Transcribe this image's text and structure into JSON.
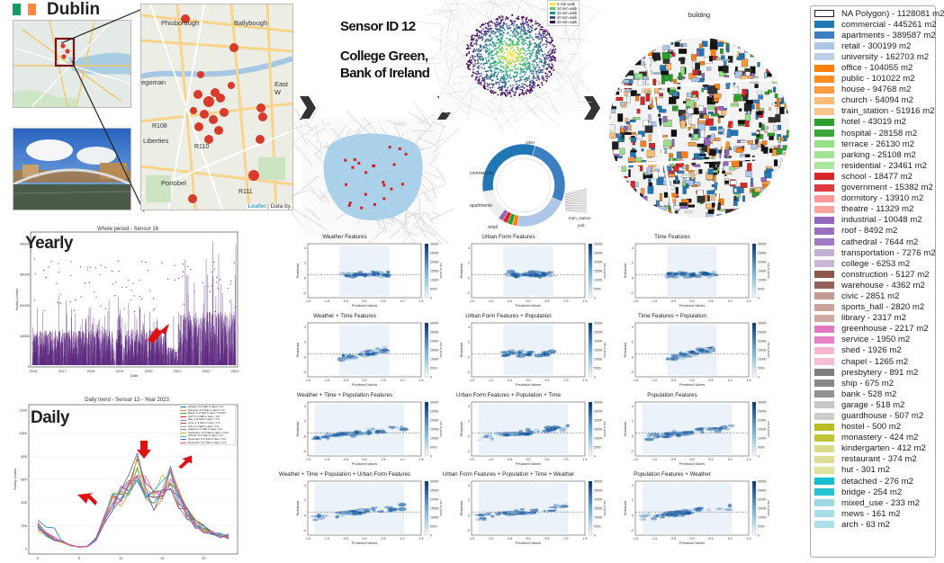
{
  "header": {
    "city": "Dublin"
  },
  "colors": {
    "ireland_green": "#169b62",
    "ireland_white": "#ffffff",
    "ireland_orange": "#ff883e",
    "marker": "#d93a2b",
    "purple": "#5e2a80"
  },
  "map": {
    "attribution_leaflet": "Leaflet",
    "attribution_suffix": "| Data by",
    "places": [
      "Phisborough",
      "Ballybough",
      "East W",
      "R108",
      "Liberties",
      "R110",
      "R111",
      "Portobel",
      "egoman"
    ]
  },
  "sensor": {
    "id_line": "Sensor ID 12",
    "location_line1": "College Green,",
    "location_line2": "Bank of Ireland"
  },
  "walk_legend": [
    "5 min walk",
    "10 min walk",
    "15 min walk",
    "20 min walk",
    "25 min walk"
  ],
  "building_title": "building",
  "pie_labels": [
    "commercial",
    "apartments",
    "retail",
    "train_station",
    "pub",
    "other"
  ],
  "yearly": {
    "label": "Yearly",
    "title": "Whole period - Sensor 16",
    "xlabel": "Date",
    "ylabel": "Hourly counts",
    "x_ticks": [
      "2016",
      "2017",
      "2018",
      "2019",
      "2020",
      "2021",
      "2022",
      "2023"
    ],
    "y_ticks": [
      "0",
      "10000",
      "20000",
      "30000",
      "40000"
    ]
  },
  "daily": {
    "label": "Daily",
    "title": "Daily trend - Sensor 12 - Year 2023",
    "ylabel": "Hourly counts",
    "x_ticks": [
      "0",
      "5",
      "10",
      "15",
      "20"
    ],
    "y_ticks": [
      "0",
      "200",
      "400",
      "600",
      "800",
      "1000",
      "1200"
    ],
    "legend": [
      "January, # of NaN in days = 0.0",
      "February, # of NaN in days = 0.0",
      "March, # of NaN in days = 0.5417",
      "April, # of NaN in days = 0.0",
      "May, # of NaN in days = 0.0",
      "June, # of NaN in days = 0.0",
      "July, # of NaN in days = 0.0",
      "August, # of NaN in days = 0.0",
      "September, # of NaN in days = 0.25",
      "October, # of NaN in days = 0.0",
      "November, # of NaN in days = 0.0",
      "December, # of NaN in days = 0.0"
    ]
  },
  "residual_plots": {
    "xlabel": "Predicted Values",
    "ylabel": "Residuals",
    "cbar_label": "count in bin",
    "x_ticks": [
      "-1.5",
      "-1.0",
      "-0.5",
      "0.0",
      "0.5",
      "1.0",
      "1.5"
    ],
    "y_ticks": [
      "4",
      "2",
      "0",
      "-2"
    ],
    "cbar_ticks": [
      "30000",
      "25000",
      "20000",
      "15000",
      "10000",
      "5000",
      "0"
    ],
    "titles": [
      "Weather Features",
      "Urban Form Features",
      "Time Features",
      "Weather + Time Features",
      "Urban Form Features + Population",
      "Time Features + Population",
      "Weather + Time + Population Features",
      "Urban Form Features + Population + Time",
      "Population Features",
      "Weather + Time + Population + Urban Form Features",
      "Urban Form Features + Population + Time + Weather",
      "Population Features + Weather"
    ]
  },
  "legend": {
    "items": [
      {
        "label": "NA Polygon) - 1128081 m2",
        "color": "#ffffff"
      },
      {
        "label": "commercial - 445261 m2",
        "color": "#1f77b4"
      },
      {
        "label": "apartments - 389587 m2",
        "color": "#3d7fc0"
      },
      {
        "label": "retail - 300199 m2",
        "color": "#aec7e8"
      },
      {
        "label": "university - 162703 m2",
        "color": "#b9cfea"
      },
      {
        "label": "office - 104055 m2",
        "color": "#ff7f0e"
      },
      {
        "label": "public - 101022 m2",
        "color": "#ff8b25"
      },
      {
        "label": "house - 94768 m2",
        "color": "#ff9a3e"
      },
      {
        "label": "church - 54094 m2",
        "color": "#ffbb78"
      },
      {
        "label": "train_station - 51916 m2",
        "color": "#ffc488"
      },
      {
        "label": "hotel - 43019 m2",
        "color": "#2ca02c"
      },
      {
        "label": "hospital - 28158 m2",
        "color": "#3aa93a"
      },
      {
        "label": "terrace - 26130 m2",
        "color": "#98df8a"
      },
      {
        "label": "parking - 25108 m2",
        "color": "#a3e396"
      },
      {
        "label": "residential - 23461 m2",
        "color": "#ade69f"
      },
      {
        "label": "school - 18477 m2",
        "color": "#d62728"
      },
      {
        "label": "government - 15382 m2",
        "color": "#dc3a3b"
      },
      {
        "label": "dormitory - 13910 m2",
        "color": "#ff9896"
      },
      {
        "label": "theatre - 11329 m2",
        "color": "#ffa3a1"
      },
      {
        "label": "industrial - 10048 m2",
        "color": "#9467bd"
      },
      {
        "label": "roof - 8492 m2",
        "color": "#9a70c1"
      },
      {
        "label": "cathedral - 7644 m2",
        "color": "#a07ac5"
      },
      {
        "label": "transportation - 7276 m2",
        "color": "#c5b0d5"
      },
      {
        "label": "college - 6253 m2",
        "color": "#cbb8d9"
      },
      {
        "label": "construction - 5127 m2",
        "color": "#8c564b"
      },
      {
        "label": "warehouse - 4362 m2",
        "color": "#94605a"
      },
      {
        "label": "civic - 2851 m2",
        "color": "#c49c94"
      },
      {
        "label": "sports_hall - 2820 m2",
        "color": "#c9a39c"
      },
      {
        "label": "library - 2317 m2",
        "color": "#ceaaa3"
      },
      {
        "label": "greenhouse - 2217 m2",
        "color": "#e377c2"
      },
      {
        "label": "service - 1950 m2",
        "color": "#e683c7"
      },
      {
        "label": "shed - 1926 m2",
        "color": "#f7b6d2"
      },
      {
        "label": "chapel - 1265 m2",
        "color": "#f8bed7"
      },
      {
        "label": "presbytery - 891 m2",
        "color": "#7f7f7f"
      },
      {
        "label": "ship - 675 m2",
        "color": "#888888"
      },
      {
        "label": "bank - 528 m2",
        "color": "#929292"
      },
      {
        "label": "garage - 518 m2",
        "color": "#c7c7c7"
      },
      {
        "label": "guardhouse - 507 m2",
        "color": "#cdcdcd"
      },
      {
        "label": "hostel - 500 m2",
        "color": "#bcbd22"
      },
      {
        "label": "monastery - 424 m2",
        "color": "#c3c434"
      },
      {
        "label": "kindergarten - 412 m2",
        "color": "#dbdb8d"
      },
      {
        "label": "restaurant - 374 m2",
        "color": "#dfdf97"
      },
      {
        "label": "hut - 301 m2",
        "color": "#e2e2a0"
      },
      {
        "label": "detached - 276 m2",
        "color": "#17becf"
      },
      {
        "label": "bridge - 254 m2",
        "color": "#25c3d3"
      },
      {
        "label": "mixed_use - 233 m2",
        "color": "#9edae5"
      },
      {
        "label": "mews - 161 m2",
        "color": "#a6dde7"
      },
      {
        "label": "arch - 63 m2",
        "color": "#ade0e9"
      }
    ]
  }
}
